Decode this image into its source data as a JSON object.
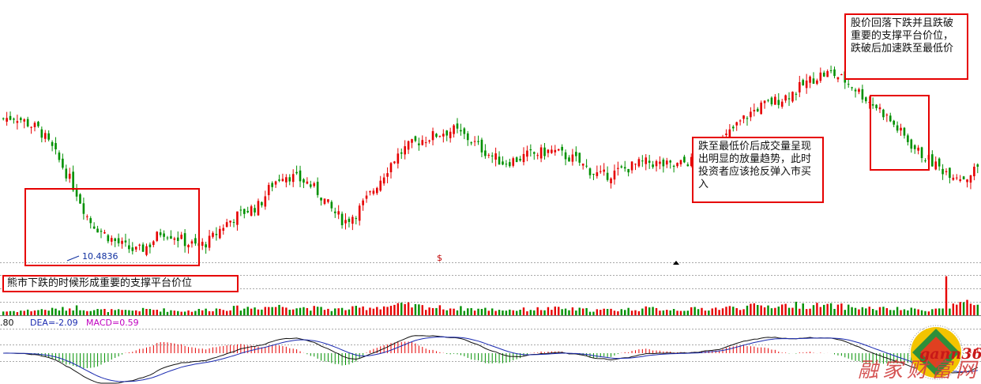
{
  "annotations": {
    "bear_support": "熊市下跌的时候形成重要的支撑平台价位",
    "breakdown": "股价回落下跌并且跌破重要的支撑平台价位，跌破后加速跌至最低价",
    "rebound": "跌至最低价后成交量呈现出明显的放量趋势，此时投资者应该抢反弹入市买入"
  },
  "low_price_label": "10.4836",
  "dollar_marker": "$",
  "macd_panel": {
    "left_value": ".80",
    "dea_label": "DEA=-2.09",
    "macd_label": "MACD=0.59"
  },
  "watermark": {
    "brand": "gann360",
    "site": "融家财富网"
  },
  "colors": {
    "up": "#e60000",
    "down": "#009000",
    "dif": "#111111",
    "dea": "#1a2ab0",
    "dea_label": "#1a2ab0",
    "macd_label": "#c000c0",
    "annotation_border": "#e60000"
  },
  "chart_data": {
    "type": "candlestick",
    "panels": [
      "price",
      "volume",
      "macd"
    ],
    "annotated_low": 10.4836,
    "indicators": {
      "DEA": -2.09,
      "MACD": 0.59
    },
    "close_profile": [
      0.62,
      0.63,
      0.6,
      0.57,
      0.49,
      0.4,
      0.3,
      0.18,
      0.13,
      0.09,
      0.06,
      0.04,
      0.07,
      0.13,
      0.11,
      0.08,
      0.06,
      0.09,
      0.15,
      0.19,
      0.22,
      0.24,
      0.33,
      0.38,
      0.36,
      0.34,
      0.29,
      0.22,
      0.17,
      0.21,
      0.28,
      0.36,
      0.44,
      0.49,
      0.52,
      0.54,
      0.56,
      0.57,
      0.54,
      0.5,
      0.46,
      0.43,
      0.44,
      0.46,
      0.47,
      0.48,
      0.46,
      0.44,
      0.4,
      0.37,
      0.38,
      0.4,
      0.42,
      0.43,
      0.42,
      0.41,
      0.43,
      0.44,
      0.48,
      0.52,
      0.58,
      0.63,
      0.67,
      0.69,
      0.71,
      0.74,
      0.78,
      0.81,
      0.82,
      0.79,
      0.75,
      0.7,
      0.66,
      0.6,
      0.54,
      0.48,
      0.44,
      0.4,
      0.38,
      0.36,
      0.41
    ],
    "volume_profile": [
      0.2,
      0.22,
      0.24,
      0.28,
      0.3,
      0.32,
      0.4,
      0.3,
      0.26,
      0.24,
      0.22,
      0.26,
      0.3,
      0.28,
      0.24,
      0.22,
      0.26,
      0.3,
      0.34,
      0.36,
      0.38,
      0.4,
      0.44,
      0.46,
      0.42,
      0.38,
      0.34,
      0.3,
      0.32,
      0.36,
      0.4,
      0.44,
      0.48,
      0.5,
      0.46,
      0.42,
      0.38,
      0.36,
      0.34,
      0.32,
      0.3,
      0.28,
      0.28,
      0.3,
      0.32,
      0.34,
      0.32,
      0.3,
      0.28,
      0.26,
      0.28,
      0.3,
      0.32,
      0.34,
      0.32,
      0.3,
      0.3,
      0.32,
      0.34,
      0.36,
      0.4,
      0.44,
      0.46,
      0.48,
      0.5,
      0.52,
      0.5,
      0.48,
      0.46,
      0.44,
      0.4,
      0.36,
      0.34,
      0.32,
      0.3,
      0.28,
      0.3,
      0.32,
      0.34,
      0.36,
      0.4
    ]
  }
}
